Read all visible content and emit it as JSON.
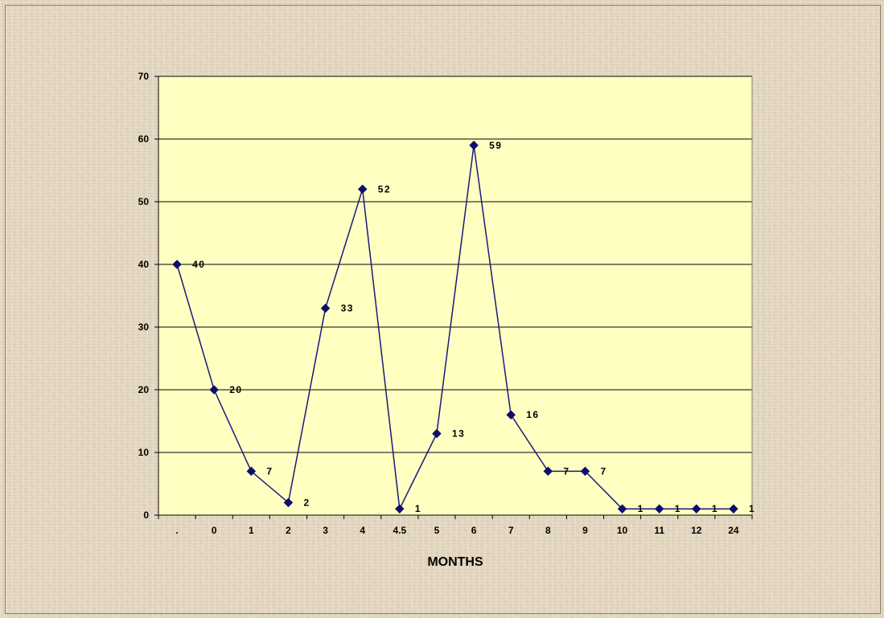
{
  "chart_data": {
    "type": "line",
    "title": "",
    "xlabel": "MONTHS",
    "ylabel": "",
    "categories": [
      ".",
      "0",
      "1",
      "2",
      "3",
      "4",
      "4.5",
      "5",
      "6",
      "7",
      "8",
      "9",
      "10",
      "11",
      "12",
      "24"
    ],
    "values": [
      40,
      20,
      7,
      2,
      33,
      52,
      1,
      13,
      59,
      16,
      7,
      7,
      1,
      1,
      1,
      1
    ],
    "ylim": [
      0,
      70
    ],
    "yticks": [
      0,
      10,
      20,
      30,
      40,
      50,
      60,
      70
    ],
    "grid": true,
    "legend": "none",
    "colors": {
      "line": "#1a1a7a",
      "marker": "#0d0d6e",
      "plot_background": "#ffffc2",
      "gridline": "#000000"
    }
  }
}
